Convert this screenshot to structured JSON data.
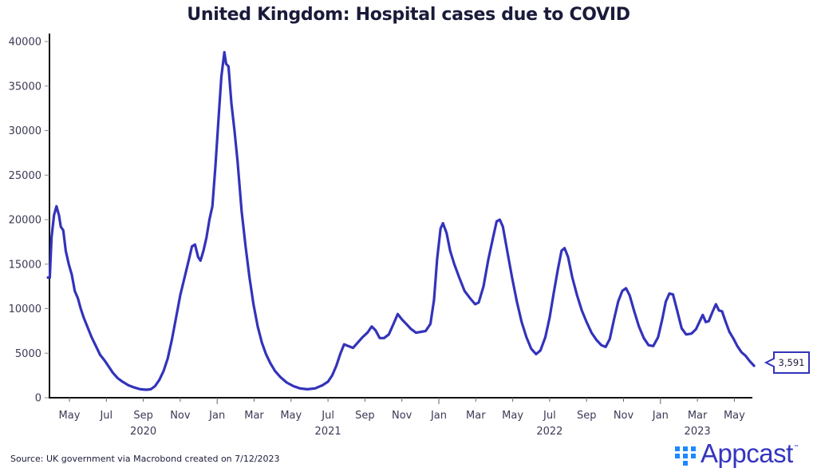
{
  "chart_data": {
    "type": "line",
    "title": "United Kingdom: Hospital cases due to COVID",
    "xlabel": "",
    "ylabel": "",
    "ylim": [
      0,
      40000
    ],
    "yticks": [
      0,
      5000,
      10000,
      15000,
      20000,
      25000,
      30000,
      35000,
      40000
    ],
    "ytick_labels": [
      "0",
      "5000",
      "10000",
      "15000",
      "20000",
      "25000",
      "30000",
      "35000",
      "40000"
    ],
    "xlim_months": [
      "2020-03",
      "2023-06"
    ],
    "xticks": [
      {
        "label": "May",
        "month": "2020-05"
      },
      {
        "label": "Jul",
        "month": "2020-07"
      },
      {
        "label": "Sep",
        "month": "2020-09"
      },
      {
        "label": "Nov",
        "month": "2020-11"
      },
      {
        "label": "Jan",
        "month": "2021-01"
      },
      {
        "label": "Mar",
        "month": "2021-03"
      },
      {
        "label": "May",
        "month": "2021-05"
      },
      {
        "label": "Jul",
        "month": "2021-07"
      },
      {
        "label": "Sep",
        "month": "2021-09"
      },
      {
        "label": "Nov",
        "month": "2021-11"
      },
      {
        "label": "Jan",
        "month": "2022-01"
      },
      {
        "label": "Mar",
        "month": "2022-03"
      },
      {
        "label": "May",
        "month": "2022-05"
      },
      {
        "label": "Jul",
        "month": "2022-07"
      },
      {
        "label": "Sep",
        "month": "2022-09"
      },
      {
        "label": "Nov",
        "month": "2022-11"
      },
      {
        "label": "Jan",
        "month": "2023-01"
      },
      {
        "label": "Mar",
        "month": "2023-03"
      },
      {
        "label": "May",
        "month": "2023-05"
      }
    ],
    "year_labels": [
      {
        "label": "2020",
        "month": "2020-09"
      },
      {
        "label": "2021",
        "month": "2021-07"
      },
      {
        "label": "2022",
        "month": "2022-07"
      },
      {
        "label": "2023",
        "month": "2023-03"
      }
    ],
    "grid": false,
    "legend": "none",
    "series": [
      {
        "name": "Hospital cases due to COVID",
        "color": "#3333bb",
        "points": [
          [
            "2020-03-27",
            13500
          ],
          [
            "2020-03-30",
            13500
          ],
          [
            "2020-04-02",
            18000
          ],
          [
            "2020-04-06",
            20500
          ],
          [
            "2020-04-10",
            21500
          ],
          [
            "2020-04-14",
            20500
          ],
          [
            "2020-04-17",
            19200
          ],
          [
            "2020-04-21",
            18800
          ],
          [
            "2020-04-25",
            16500
          ],
          [
            "2020-04-30",
            15000
          ],
          [
            "2020-05-05",
            13800
          ],
          [
            "2020-05-10",
            12000
          ],
          [
            "2020-05-15",
            11200
          ],
          [
            "2020-05-20",
            10000
          ],
          [
            "2020-05-25",
            9000
          ],
          [
            "2020-05-31",
            8000
          ],
          [
            "2020-06-07",
            6800
          ],
          [
            "2020-06-14",
            5800
          ],
          [
            "2020-06-21",
            4800
          ],
          [
            "2020-06-28",
            4200
          ],
          [
            "2020-07-05",
            3500
          ],
          [
            "2020-07-12",
            2800
          ],
          [
            "2020-07-20",
            2200
          ],
          [
            "2020-07-28",
            1800
          ],
          [
            "2020-08-07",
            1400
          ],
          [
            "2020-08-17",
            1150
          ],
          [
            "2020-08-27",
            950
          ],
          [
            "2020-09-06",
            900
          ],
          [
            "2020-09-13",
            950
          ],
          [
            "2020-09-20",
            1300
          ],
          [
            "2020-09-27",
            2000
          ],
          [
            "2020-10-04",
            3000
          ],
          [
            "2020-10-11",
            4400
          ],
          [
            "2020-10-18",
            6500
          ],
          [
            "2020-10-25",
            9000
          ],
          [
            "2020-11-01",
            11500
          ],
          [
            "2020-11-08",
            13500
          ],
          [
            "2020-11-15",
            15500
          ],
          [
            "2020-11-20",
            17000
          ],
          [
            "2020-11-25",
            17200
          ],
          [
            "2020-11-30",
            15800
          ],
          [
            "2020-12-04",
            15400
          ],
          [
            "2020-12-09",
            16500
          ],
          [
            "2020-12-14",
            18000
          ],
          [
            "2020-12-19",
            20000
          ],
          [
            "2020-12-24",
            21500
          ],
          [
            "2020-12-29",
            26000
          ],
          [
            "2021-01-04",
            32000
          ],
          [
            "2021-01-08",
            36000
          ],
          [
            "2021-01-13",
            38800
          ],
          [
            "2021-01-16",
            37500
          ],
          [
            "2021-01-20",
            37200
          ],
          [
            "2021-01-25",
            33000
          ],
          [
            "2021-01-30",
            30000
          ],
          [
            "2021-02-04",
            26500
          ],
          [
            "2021-02-10",
            21000
          ],
          [
            "2021-02-16",
            17000
          ],
          [
            "2021-02-22",
            13500
          ],
          [
            "2021-02-28",
            10500
          ],
          [
            "2021-03-07",
            8000
          ],
          [
            "2021-03-14",
            6200
          ],
          [
            "2021-03-21",
            4900
          ],
          [
            "2021-03-28",
            3900
          ],
          [
            "2021-04-05",
            3000
          ],
          [
            "2021-04-14",
            2300
          ],
          [
            "2021-04-24",
            1700
          ],
          [
            "2021-05-05",
            1300
          ],
          [
            "2021-05-16",
            1050
          ],
          [
            "2021-05-28",
            950
          ],
          [
            "2021-06-10",
            1050
          ],
          [
            "2021-06-22",
            1400
          ],
          [
            "2021-07-01",
            1800
          ],
          [
            "2021-07-08",
            2500
          ],
          [
            "2021-07-15",
            3600
          ],
          [
            "2021-07-22",
            5000
          ],
          [
            "2021-07-28",
            6000
          ],
          [
            "2021-08-04",
            5800
          ],
          [
            "2021-08-12",
            5600
          ],
          [
            "2021-08-20",
            6200
          ],
          [
            "2021-08-28",
            6800
          ],
          [
            "2021-09-05",
            7300
          ],
          [
            "2021-09-12",
            8000
          ],
          [
            "2021-09-18",
            7600
          ],
          [
            "2021-09-25",
            6700
          ],
          [
            "2021-10-02",
            6700
          ],
          [
            "2021-10-10",
            7100
          ],
          [
            "2021-10-18",
            8300
          ],
          [
            "2021-10-25",
            9400
          ],
          [
            "2021-11-01",
            8800
          ],
          [
            "2021-11-08",
            8300
          ],
          [
            "2021-11-16",
            7700
          ],
          [
            "2021-11-24",
            7300
          ],
          [
            "2021-12-02",
            7400
          ],
          [
            "2021-12-10",
            7500
          ],
          [
            "2021-12-18",
            8300
          ],
          [
            "2021-12-24",
            11000
          ],
          [
            "2021-12-29",
            15500
          ],
          [
            "2022-01-04",
            19000
          ],
          [
            "2022-01-08",
            19600
          ],
          [
            "2022-01-14",
            18500
          ],
          [
            "2022-01-20",
            16500
          ],
          [
            "2022-01-27",
            15000
          ],
          [
            "2022-02-04",
            13500
          ],
          [
            "2022-02-12",
            12000
          ],
          [
            "2022-02-20",
            11200
          ],
          [
            "2022-02-28",
            10500
          ],
          [
            "2022-03-06",
            10700
          ],
          [
            "2022-03-14",
            12500
          ],
          [
            "2022-03-22",
            15500
          ],
          [
            "2022-03-30",
            18000
          ],
          [
            "2022-04-05",
            19800
          ],
          [
            "2022-04-10",
            20000
          ],
          [
            "2022-04-15",
            19200
          ],
          [
            "2022-04-22",
            16500
          ],
          [
            "2022-04-30",
            13500
          ],
          [
            "2022-05-08",
            10800
          ],
          [
            "2022-05-16",
            8500
          ],
          [
            "2022-05-24",
            6800
          ],
          [
            "2022-06-01",
            5500
          ],
          [
            "2022-06-09",
            4900
          ],
          [
            "2022-06-16",
            5300
          ],
          [
            "2022-06-24",
            6800
          ],
          [
            "2022-07-01",
            9000
          ],
          [
            "2022-07-08",
            11800
          ],
          [
            "2022-07-15",
            14500
          ],
          [
            "2022-07-21",
            16500
          ],
          [
            "2022-07-26",
            16800
          ],
          [
            "2022-08-01",
            15800
          ],
          [
            "2022-08-08",
            13500
          ],
          [
            "2022-08-16",
            11500
          ],
          [
            "2022-08-24",
            9800
          ],
          [
            "2022-09-01",
            8500
          ],
          [
            "2022-09-09",
            7300
          ],
          [
            "2022-09-17",
            6500
          ],
          [
            "2022-09-25",
            5900
          ],
          [
            "2022-10-02",
            5700
          ],
          [
            "2022-10-09",
            6600
          ],
          [
            "2022-10-16",
            8800
          ],
          [
            "2022-10-23",
            10800
          ],
          [
            "2022-10-30",
            12000
          ],
          [
            "2022-11-05",
            12300
          ],
          [
            "2022-11-11",
            11500
          ],
          [
            "2022-11-18",
            9800
          ],
          [
            "2022-11-26",
            8000
          ],
          [
            "2022-12-04",
            6700
          ],
          [
            "2022-12-12",
            5900
          ],
          [
            "2022-12-20",
            5800
          ],
          [
            "2022-12-28",
            6800
          ],
          [
            "2023-01-04",
            8800
          ],
          [
            "2023-01-10",
            10800
          ],
          [
            "2023-01-16",
            11700
          ],
          [
            "2023-01-22",
            11600
          ],
          [
            "2023-01-29",
            9800
          ],
          [
            "2023-02-05",
            7800
          ],
          [
            "2023-02-12",
            7100
          ],
          [
            "2023-02-20",
            7200
          ],
          [
            "2023-02-27",
            7700
          ],
          [
            "2023-03-05",
            8600
          ],
          [
            "2023-03-10",
            9300
          ],
          [
            "2023-03-15",
            8500
          ],
          [
            "2023-03-20",
            8600
          ],
          [
            "2023-03-26",
            9600
          ],
          [
            "2023-04-01",
            10500
          ],
          [
            "2023-04-06",
            9800
          ],
          [
            "2023-04-11",
            9700
          ],
          [
            "2023-04-17",
            8500
          ],
          [
            "2023-04-23",
            7400
          ],
          [
            "2023-04-29",
            6700
          ],
          [
            "2023-05-06",
            5800
          ],
          [
            "2023-05-13",
            5100
          ],
          [
            "2023-05-20",
            4700
          ],
          [
            "2023-05-27",
            4100
          ],
          [
            "2023-06-03",
            3591
          ]
        ]
      }
    ],
    "annotations": [
      {
        "type": "last-value-callout",
        "text": "3,591",
        "value": 3591
      }
    ]
  },
  "source": "Source: UK government via Macrobond created on 7/12/2023",
  "logo": {
    "text": "Appcast",
    "tm": "™",
    "dots_color": "#1e88ff",
    "text_color": "#3535c0"
  }
}
